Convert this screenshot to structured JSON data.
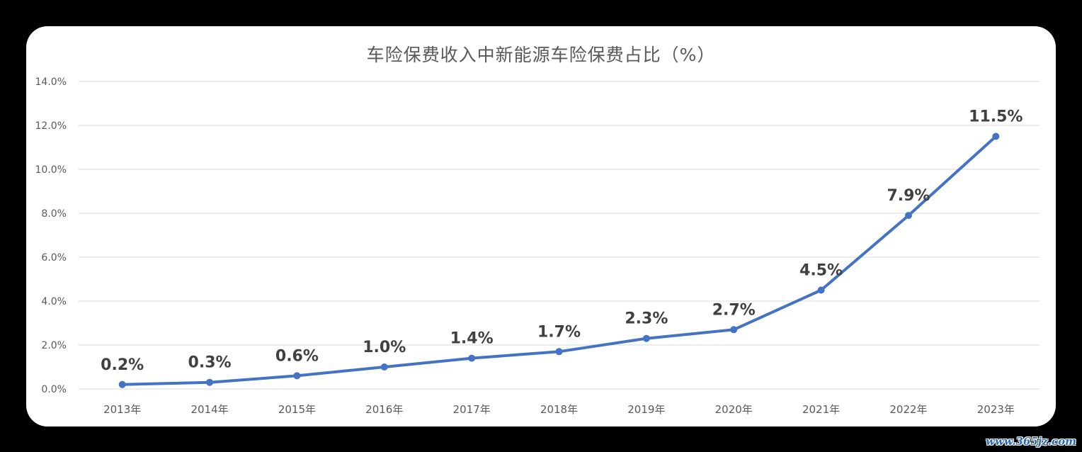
{
  "chart_data": {
    "type": "line",
    "title": "车险保费收入中新能源车险保费占比（%）",
    "xlabel": "",
    "ylabel": "",
    "categories": [
      "2013年",
      "2014年",
      "2015年",
      "2016年",
      "2017年",
      "2018年",
      "2019年",
      "2020年",
      "2021年",
      "2022年",
      "2023年"
    ],
    "series": [
      {
        "values": [
          0.2,
          0.3,
          0.6,
          1.0,
          1.4,
          1.7,
          2.3,
          2.7,
          4.5,
          7.9,
          11.5
        ],
        "data_labels": [
          "0.2%",
          "0.3%",
          "0.6%",
          "1.0%",
          "1.4%",
          "1.7%",
          "2.3%",
          "2.7%",
          "4.5%",
          "7.9%",
          "11.5%"
        ],
        "color": "#4472c4"
      }
    ],
    "ylim": [
      0,
      14
    ],
    "yticks": [
      "0.0%",
      "2.0%",
      "4.0%",
      "6.0%",
      "8.0%",
      "10.0%",
      "12.0%",
      "14.0%"
    ],
    "grid": true,
    "legend": "none"
  },
  "watermark": "www.365jz.com",
  "colors": {
    "background": "#000000",
    "card": "#ffffff",
    "gridline": "#d9d9d9",
    "axis_text": "#595959",
    "data_label": "#404040"
  }
}
